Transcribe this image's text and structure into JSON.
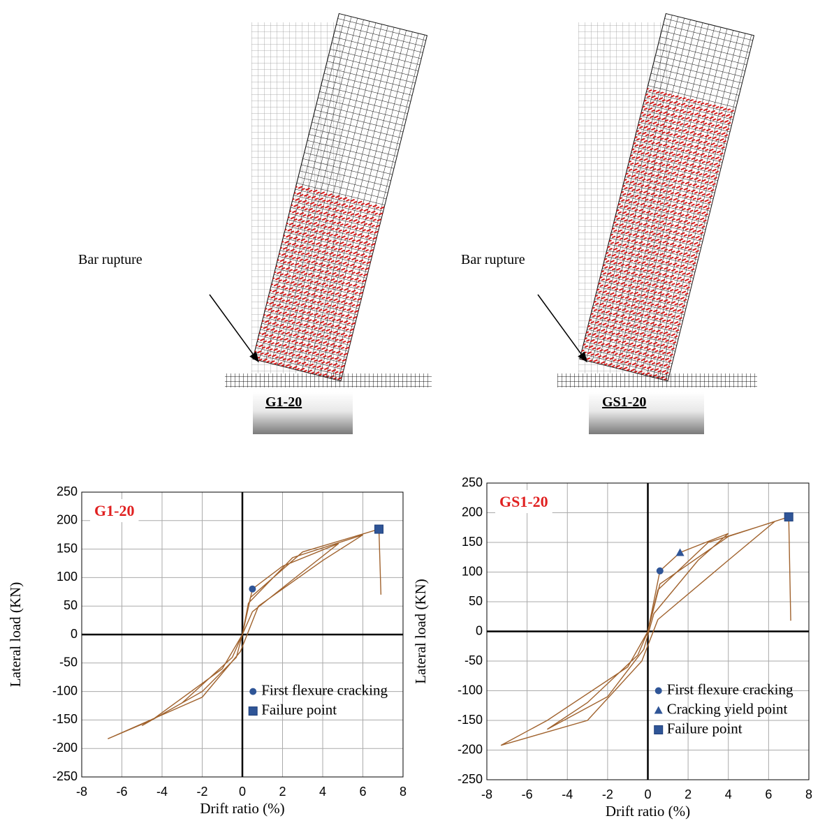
{
  "figures": [
    {
      "annotation": "Bar rupture",
      "label": "G1-20"
    },
    {
      "annotation": "Bar rupture",
      "label": "GS1-20"
    }
  ],
  "chart_data": [
    {
      "type": "line",
      "title": "G1-20",
      "x_label": "Drift ratio (%)",
      "y_label": "Lateral load (KN)",
      "xlim": [
        -8,
        8
      ],
      "ylim": [
        -250,
        250
      ],
      "xticks": [
        -8,
        -6,
        -4,
        -2,
        0,
        2,
        4,
        6,
        8
      ],
      "yticks": [
        -250,
        -200,
        -150,
        -100,
        -50,
        0,
        50,
        100,
        150,
        200,
        250
      ],
      "grid": true,
      "legend": "lower right",
      "series": [
        {
          "color": "#a0622d",
          "x": [
            0,
            0.5,
            2,
            4.8,
            3,
            0.5,
            0,
            -0.3,
            -2,
            -5,
            -3,
            -0.5,
            0,
            0.3,
            2.5,
            6,
            4,
            0.8,
            -0.1,
            -2,
            -6.7,
            -4.5,
            -1,
            0,
            0.4,
            3,
            6.8,
            6.9
          ],
          "values": [
            0,
            80,
            120,
            160,
            110,
            40,
            0,
            -40,
            -100,
            -160,
            -120,
            -40,
            0,
            55,
            135,
            175,
            130,
            50,
            -30,
            -110,
            -183,
            -150,
            -60,
            0,
            65,
            145,
            185,
            70
          ]
        },
        {
          "name": "First flexure cracking",
          "color": "#2f5597",
          "marker": "circle",
          "x": [
            0.5
          ],
          "values": [
            80
          ]
        },
        {
          "name": "Failure point",
          "color": "#2f5597",
          "marker": "square",
          "x": [
            6.8
          ],
          "values": [
            185
          ]
        }
      ]
    },
    {
      "type": "line",
      "title": "GS1-20",
      "x_label": "Drift ratio (%)",
      "y_label": "Lateral load (KN)",
      "xlim": [
        -8,
        8
      ],
      "ylim": [
        -250,
        250
      ],
      "xticks": [
        -8,
        -6,
        -4,
        -2,
        0,
        2,
        4,
        6,
        8
      ],
      "yticks": [
        -250,
        -200,
        -150,
        -100,
        -50,
        0,
        50,
        100,
        150,
        200,
        250
      ],
      "grid": true,
      "legend": "lower right",
      "series": [
        {
          "color": "#a0622d",
          "x": [
            0,
            0.6,
            1.6,
            4,
            2.5,
            0.3,
            -0.2,
            -2,
            -5,
            -3,
            -0.5,
            0,
            0.5,
            3,
            6.3,
            4,
            0.5,
            -0.3,
            -3,
            -7.3,
            -5,
            -1,
            0,
            0.6,
            4,
            7,
            7.1
          ],
          "values": [
            0,
            102,
            133,
            165,
            120,
            30,
            -30,
            -110,
            -165,
            -120,
            -40,
            0,
            70,
            150,
            185,
            120,
            20,
            -50,
            -150,
            -192,
            -150,
            -60,
            0,
            80,
            160,
            193,
            18
          ]
        },
        {
          "name": "First flexure cracking",
          "color": "#2f5597",
          "marker": "circle",
          "x": [
            0.6
          ],
          "values": [
            102
          ]
        },
        {
          "name": "Cracking yield point",
          "color": "#2f5597",
          "marker": "triangle",
          "x": [
            1.6
          ],
          "values": [
            133
          ]
        },
        {
          "name": "Failure point",
          "color": "#2f5597",
          "marker": "square",
          "x": [
            7
          ],
          "values": [
            193
          ]
        }
      ]
    }
  ]
}
